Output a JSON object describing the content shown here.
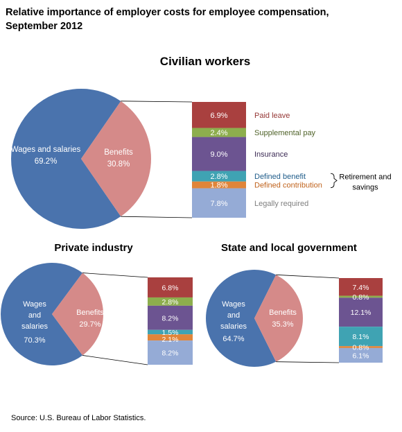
{
  "figure": {
    "title_line1": "Relative importance of employer costs for employee compensation,",
    "title_line2": "September 2012",
    "source": "Source: U.S. Bureau of Labor Statistics."
  },
  "colors": {
    "wages": "#4A73AD",
    "benefits": "#D58A89",
    "paid_leave": "#A9403F",
    "supplemental_pay": "#8DAE4D",
    "insurance": "#6C5491",
    "defined_benefit": "#3FA3B3",
    "defined_contribution": "#E0853A",
    "legally_required": "#95ABD6",
    "label_paid_leave": "#953735",
    "label_supplemental_pay": "#4F6228",
    "label_insurance": "#3B2A54",
    "label_defined_benefit": "#1F5C8A",
    "label_defined_contribution": "#C0621B",
    "label_legally_required": "#7F7F7F"
  },
  "category_labels": [
    "Paid leave",
    "Supplemental pay",
    "Insurance",
    "Defined benefit",
    "Defined contribution",
    "Legally required"
  ],
  "bracket_label_line1": "Retirement and",
  "bracket_label_line2": "savings",
  "chart_data": [
    {
      "type": "pie",
      "title": "Civilian workers",
      "slices": [
        {
          "label": "Wages and salaries",
          "value": 69.2,
          "value_text": "69.2%"
        },
        {
          "label": "Benefits",
          "value": 30.8,
          "value_text": "30.8%"
        }
      ],
      "benefits_breakdown": {
        "type": "bar",
        "stacked": true,
        "categories": [
          "Paid leave",
          "Supplemental pay",
          "Insurance",
          "Defined benefit",
          "Defined contribution",
          "Legally required"
        ],
        "values": [
          6.9,
          2.4,
          9.0,
          2.8,
          1.8,
          7.8
        ],
        "value_labels": [
          "6.9%",
          "2.4%",
          "9.0%",
          "2.8%",
          "1.8%",
          "7.8%"
        ]
      }
    },
    {
      "type": "pie",
      "title": "Private industry",
      "slices": [
        {
          "label": "Wages and salaries",
          "value": 70.3,
          "value_text": "70.3%"
        },
        {
          "label": "Benefits",
          "value": 29.7,
          "value_text": "29.7%"
        }
      ],
      "benefits_breakdown": {
        "type": "bar",
        "stacked": true,
        "categories": [
          "Paid leave",
          "Supplemental pay",
          "Insurance",
          "Defined benefit",
          "Defined contribution",
          "Legally required"
        ],
        "values": [
          6.8,
          2.8,
          8.2,
          1.5,
          2.1,
          8.2
        ],
        "value_labels": [
          "6.8%",
          "2.8%",
          "8.2%",
          "1.5%",
          "2.1%",
          "8.2%"
        ]
      }
    },
    {
      "type": "pie",
      "title": "State and local government",
      "slices": [
        {
          "label": "Wages and salaries",
          "value": 64.7,
          "value_text": "64.7%"
        },
        {
          "label": "Benefits",
          "value": 35.3,
          "value_text": "35.3%"
        }
      ],
      "benefits_breakdown": {
        "type": "bar",
        "stacked": true,
        "categories": [
          "Paid leave",
          "Supplemental pay",
          "Insurance",
          "Defined benefit",
          "Defined contribution",
          "Legally required"
        ],
        "values": [
          7.4,
          0.8,
          12.1,
          8.1,
          0.8,
          6.1
        ],
        "value_labels": [
          "7.4%",
          "0.8%",
          "12.1%",
          "8.1%",
          "0.8%",
          "6.1%"
        ]
      }
    }
  ]
}
